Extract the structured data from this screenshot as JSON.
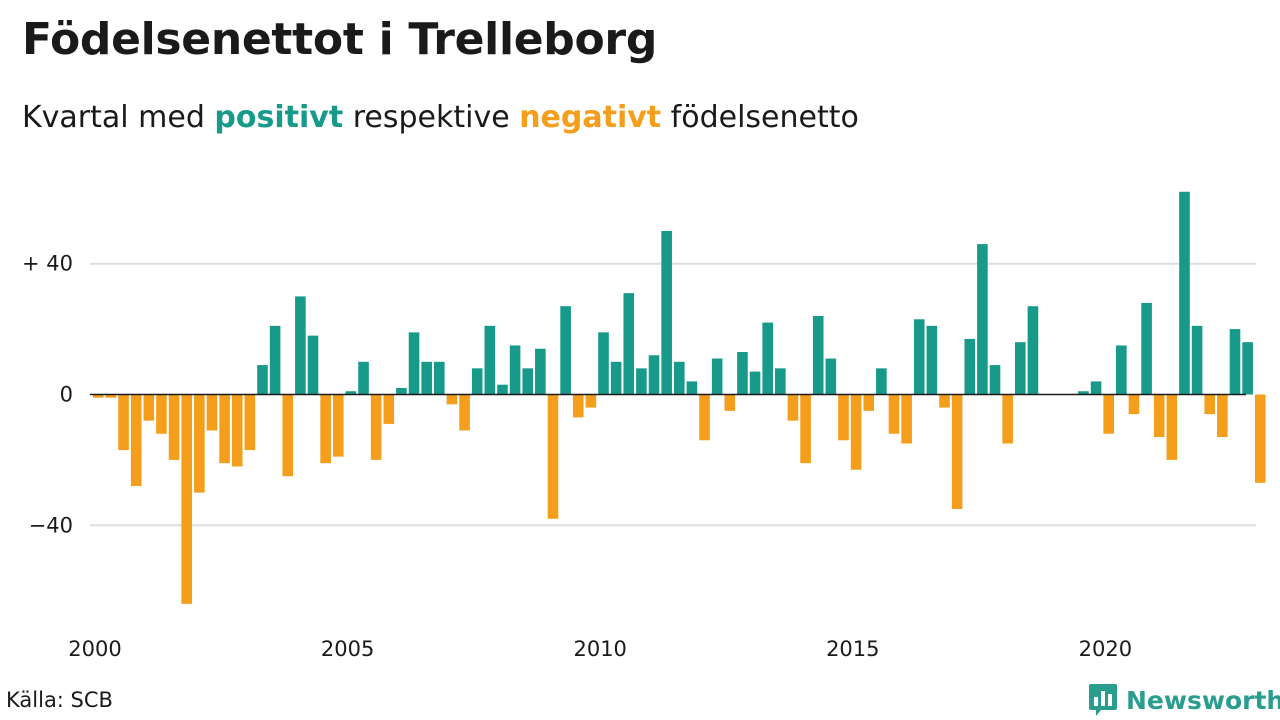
{
  "header": {
    "title": "Födelsenettot i Trelleborg",
    "subtitle_pre": "Kvartal med ",
    "subtitle_pos": "positivt",
    "subtitle_mid": " respektive ",
    "subtitle_neg": "negativt",
    "subtitle_post": " födelsenetto"
  },
  "footer": {
    "source": "Källa: SCB",
    "brand": "Newsworthy",
    "brand_icon": "bar-chart-speech-icon"
  },
  "colors": {
    "positive": "#179a8a",
    "negative": "#f59e1c",
    "grid": "#dddddd",
    "zero_line": "#1a1a1a"
  },
  "chart_data": {
    "type": "bar",
    "x_start": "2000 Q1",
    "x_ticks": [
      "2000",
      "2005",
      "2010",
      "2015",
      "2020"
    ],
    "y_ticks": [
      {
        "value": 40,
        "label": "+ 40"
      },
      {
        "value": 0,
        "label": "0"
      },
      {
        "value": -40,
        "label": "−40"
      }
    ],
    "ylim": [
      -66,
      64
    ],
    "grid": true,
    "values": [
      -1,
      -1,
      -17,
      -28,
      -8,
      -12,
      -20,
      -64,
      -30,
      -11,
      -21,
      -22,
      -17,
      9,
      21,
      -25,
      30,
      18,
      -21,
      -19,
      1,
      10,
      -20,
      -9,
      2,
      19,
      10,
      10,
      -3,
      -11,
      8,
      21,
      3,
      15,
      8,
      14,
      -38,
      27,
      -7,
      -4,
      19,
      10,
      31,
      8,
      12,
      50,
      10,
      4,
      -14,
      11,
      -5,
      13,
      7,
      22,
      8,
      -8,
      -21,
      24,
      11,
      -14,
      -23,
      -5,
      8,
      -12,
      -15,
      23,
      21,
      -4,
      -35,
      17,
      46,
      9,
      -15,
      16,
      27,
      0,
      0,
      0,
      1,
      4,
      -12,
      15,
      -6,
      28,
      -13,
      -20,
      62,
      21,
      -6,
      -13,
      20,
      16,
      -27
    ]
  }
}
